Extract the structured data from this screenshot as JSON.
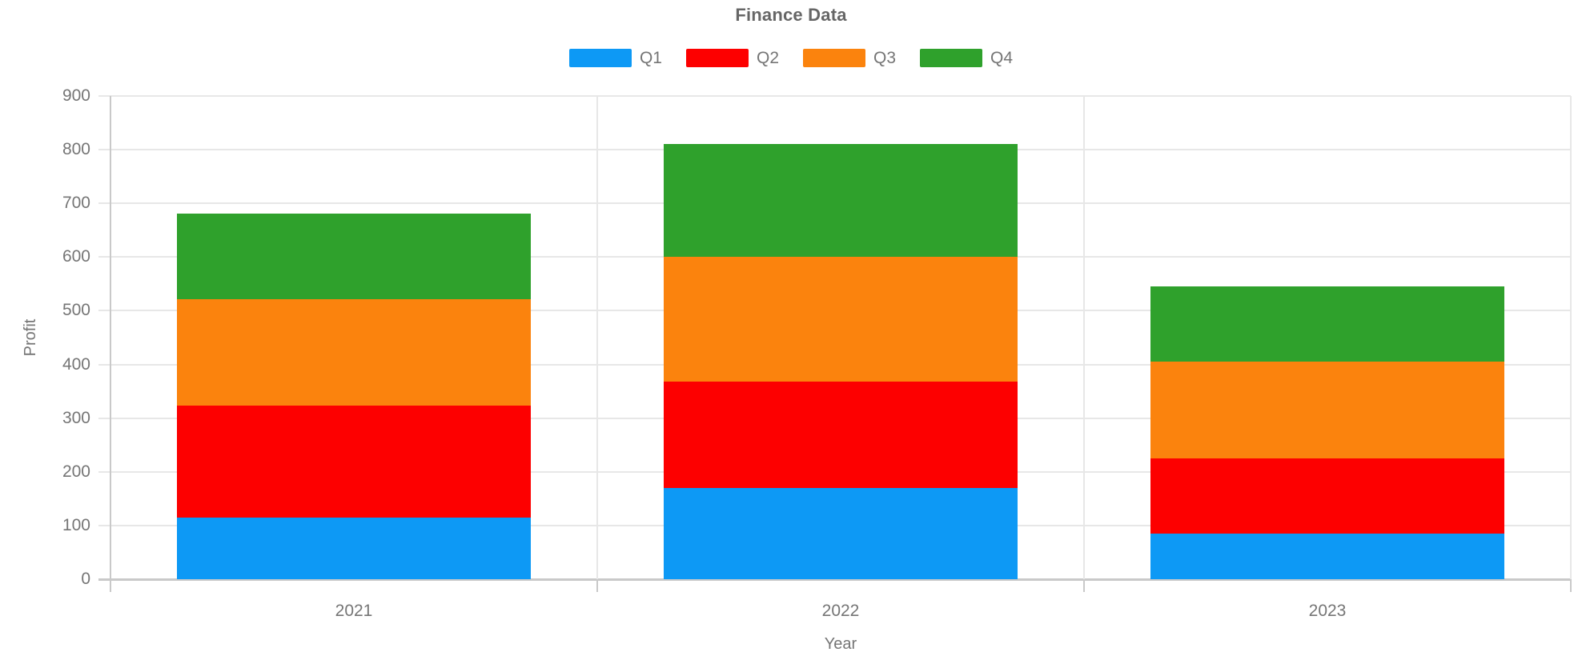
{
  "chart_data": {
    "type": "bar",
    "stacked": true,
    "title": "Finance Data",
    "xlabel": "Year",
    "ylabel": "Profit",
    "categories": [
      "2021",
      "2022",
      "2023"
    ],
    "series": [
      {
        "name": "Q1",
        "color": "#0d99f5",
        "values": [
          115,
          170,
          85
        ]
      },
      {
        "name": "Q2",
        "color": "#fd0000",
        "values": [
          208,
          198,
          140
        ]
      },
      {
        "name": "Q3",
        "color": "#fb830d",
        "values": [
          198,
          232,
          180
        ]
      },
      {
        "name": "Q4",
        "color": "#2fa12c",
        "values": [
          160,
          210,
          140
        ]
      }
    ],
    "stack_totals": [
      681,
      810,
      545
    ],
    "ylim": [
      0,
      900
    ],
    "ytick_step": 100,
    "yticks": [
      0,
      100,
      200,
      300,
      400,
      500,
      600,
      700,
      800,
      900
    ],
    "grid": true,
    "legend_position": "top"
  },
  "styles": {
    "title_color": "#666666",
    "label_color": "#757575",
    "grid_color": "#e7e7e7",
    "axis_color": "#c9c9c9",
    "background": "#ffffff"
  }
}
